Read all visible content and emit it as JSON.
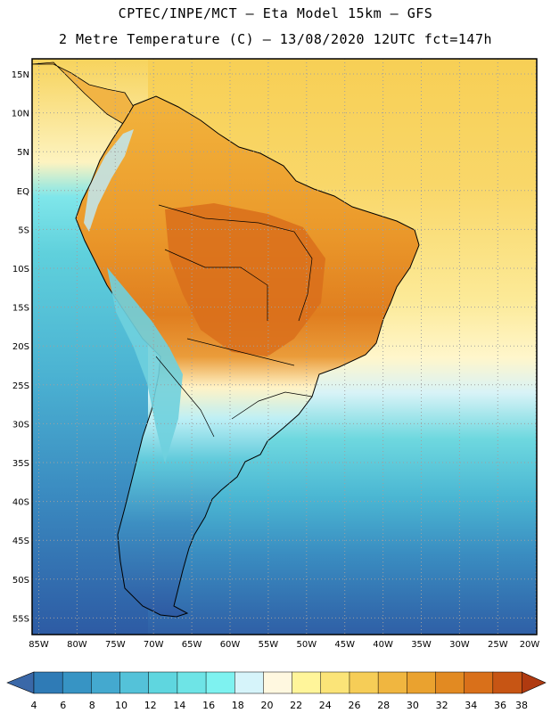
{
  "header": {
    "line1": "CPTEC/INPE/MCT –  Eta Model 15km – GFS",
    "line2": "2 Metre Temperature (C) – 13/08/2020 12UTC fct=147h"
  },
  "map": {
    "lat_labels": [
      "15N",
      "10N",
      "5N",
      "EQ",
      "5S",
      "10S",
      "15S",
      "20S",
      "25S",
      "30S",
      "35S",
      "40S",
      "45S",
      "50S",
      "55S"
    ],
    "lon_labels": [
      "85W",
      "80W",
      "75W",
      "70W",
      "65W",
      "60W",
      "55W",
      "50W",
      "45W",
      "40W",
      "35W",
      "30W",
      "25W",
      "20W"
    ],
    "lon_range_deg": [
      -85,
      -20
    ],
    "lat_range_deg": [
      17,
      -57
    ],
    "grid_step_deg": 5,
    "grid_line_color": "#a0a0a0"
  },
  "colorbar": {
    "values": [
      "4",
      "6",
      "8",
      "10",
      "12",
      "14",
      "16",
      "18",
      "20",
      "22",
      "24",
      "26",
      "28",
      "30",
      "32",
      "34",
      "36",
      "38"
    ],
    "low_arrow_color": "#3a68a8",
    "high_arrow_color": "#b03a10",
    "colors": [
      "#3a68a8",
      "#2f7bb6",
      "#3794c4",
      "#44a9cf",
      "#54c2d9",
      "#5fd6df",
      "#6ee4e6",
      "#7ef2f0",
      "#d6f4fa",
      "#fff8e0",
      "#fff59a",
      "#fbe478",
      "#f6cd57",
      "#f0b640",
      "#eaa22f",
      "#e28a22",
      "#d9701a",
      "#c75514",
      "#b03a10"
    ]
  }
}
